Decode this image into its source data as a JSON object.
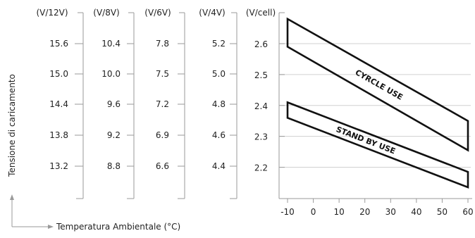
{
  "chart_data": {
    "type": "line",
    "ylabel": "Tensione di caricamento",
    "xlabel": "Temperatura Ambientale (°C)",
    "x_ticks": [
      -10,
      0,
      10,
      20,
      30,
      40,
      50,
      60
    ],
    "xlim": [
      -10,
      60
    ],
    "y_unit": "(V/cell)",
    "y_ticks": [
      2.2,
      2.3,
      2.4,
      2.5,
      2.6
    ],
    "ylim": [
      2.12,
      2.69
    ],
    "grid": "horizontal",
    "secondary_axes": [
      {
        "unit": "(V/12V)",
        "ticks": [
          "15.6",
          "15.0",
          "14.4",
          "13.8",
          "13.2"
        ]
      },
      {
        "unit": "(V/8V)",
        "ticks": [
          "10.4",
          "10.0",
          "9.6",
          "9.2",
          "8.8"
        ]
      },
      {
        "unit": "(V/6V)",
        "ticks": [
          "7.8",
          "7.5",
          "7.2",
          "6.9",
          "6.6"
        ]
      },
      {
        "unit": "(V/4V)",
        "ticks": [
          "5.2",
          "5.0",
          "4.8",
          "4.6",
          "4.4"
        ]
      }
    ],
    "series": [
      {
        "name": "CYRCLE USE",
        "upper": [
          [
            -10,
            2.68
          ],
          [
            60,
            2.35
          ]
        ],
        "lower": [
          [
            -10,
            2.59
          ],
          [
            60,
            2.255
          ]
        ]
      },
      {
        "name": "STAND BY USE",
        "upper": [
          [
            -10,
            2.41
          ],
          [
            60,
            2.185
          ]
        ],
        "lower": [
          [
            -10,
            2.36
          ],
          [
            60,
            2.135
          ]
        ]
      }
    ]
  }
}
